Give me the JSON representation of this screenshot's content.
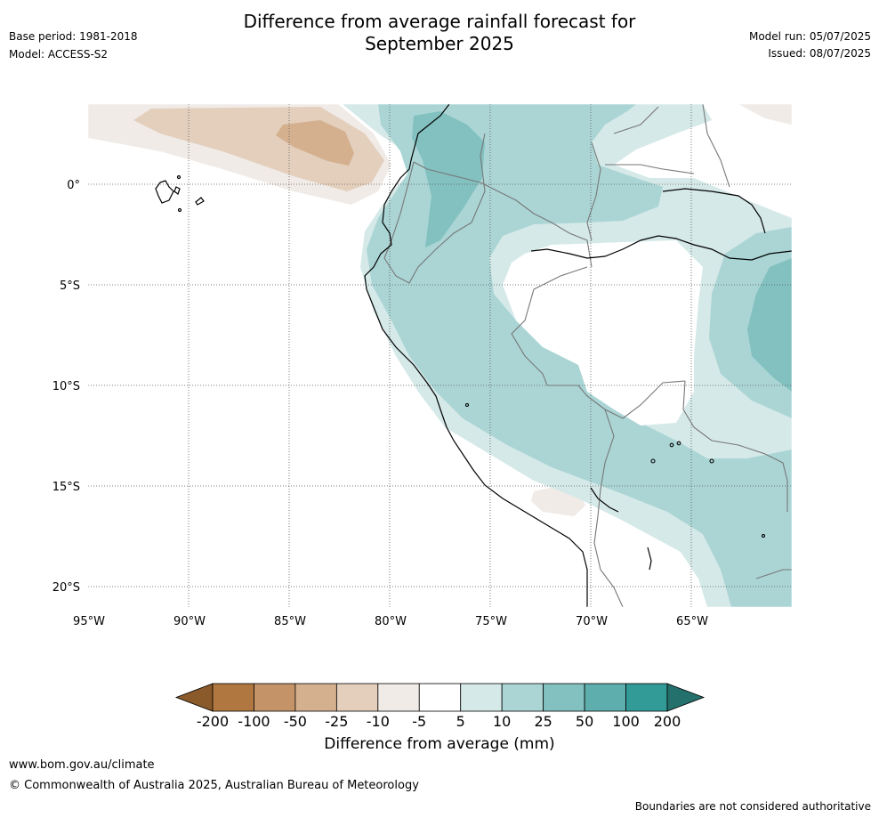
{
  "title_line1": "Difference from average rainfall forecast for",
  "title_line2": "September 2025",
  "base_period": "Base period: 1981-2018",
  "model": "Model: ACCESS-S2",
  "model_run": "Model run: 05/07/2025",
  "issued": "Issued: 08/07/2025",
  "lat_labels": [
    "0°",
    "5°S",
    "10°S",
    "15°S",
    "20°S"
  ],
  "lon_labels": [
    "95°W",
    "90°W",
    "85°W",
    "80°W",
    "75°W",
    "70°W",
    "65°W"
  ],
  "legend": {
    "title": "Difference from average (mm)",
    "ticks": [
      "-200",
      "-100",
      "-50",
      "-25",
      "-10",
      "-5",
      "5",
      "10",
      "25",
      "50",
      "100",
      "200"
    ],
    "colors": [
      "#8a5a2b",
      "#b07840",
      "#c49468",
      "#d4b08f",
      "#e3cfbc",
      "#f0ebe7",
      "#ffffff",
      "#d5e9e8",
      "#abd5d5",
      "#82c1c0",
      "#5daeac",
      "#339b97",
      "#24706c"
    ]
  },
  "footer": {
    "url": "www.bom.gov.au/climate",
    "copyright": "© Commonwealth of Australia 2025, Australian Bureau of Meteorology",
    "note": "Boundaries are not considered authoritative"
  }
}
